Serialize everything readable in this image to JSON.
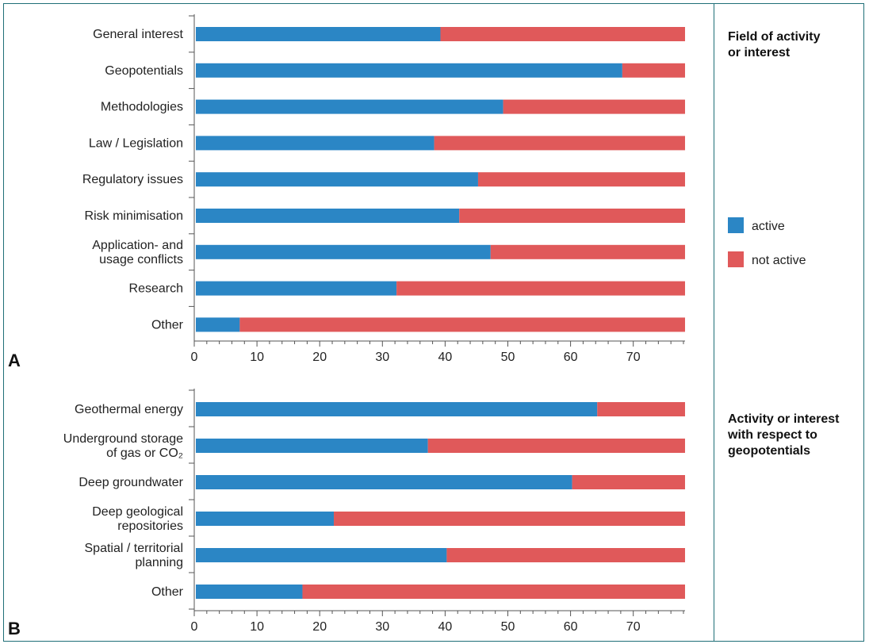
{
  "colors": {
    "active": "#2b86c5",
    "not_active": "#e0595a",
    "frame": "#1f6f78"
  },
  "legend": {
    "active_label": "active",
    "not_active_label": "not active"
  },
  "panels": {
    "A": {
      "letter": "A",
      "side_title_lines": [
        "Field of activity",
        "or interest"
      ]
    },
    "B": {
      "letter": "B",
      "side_title_lines": [
        "Activity or interest",
        "with respect to",
        "geopotentials"
      ]
    }
  },
  "chart_data": [
    {
      "type": "bar",
      "orientation": "horizontal",
      "stacked": true,
      "categories": [
        "General interest",
        "Geopotentials",
        "Methodologies",
        "Law / Legislation",
        "Regulatory issues",
        "Risk minimisation",
        "Application- and usage conflicts",
        "Research",
        "Other"
      ],
      "series": [
        {
          "name": "active",
          "values": [
            39,
            68,
            49,
            38,
            45,
            42,
            47,
            32,
            7
          ]
        },
        {
          "name": "not active",
          "values": [
            39,
            10,
            29,
            40,
            33,
            36,
            31,
            46,
            71
          ]
        }
      ],
      "xticks": [
        0,
        10,
        20,
        30,
        40,
        50,
        60,
        70
      ],
      "xlim": [
        0,
        78
      ],
      "legend": "right"
    },
    {
      "type": "bar",
      "orientation": "horizontal",
      "stacked": true,
      "categories": [
        "Geothermal energy",
        "Underground storage of gas or CO2",
        "Deep groundwater",
        "Deep geological repositories",
        "Spatial / territorial planning",
        "Other"
      ],
      "series": [
        {
          "name": "active",
          "values": [
            64,
            37,
            60,
            22,
            40,
            17
          ]
        },
        {
          "name": "not active",
          "values": [
            14,
            41,
            18,
            56,
            38,
            61
          ]
        }
      ],
      "xticks": [
        0,
        10,
        20,
        30,
        40,
        50,
        60,
        70
      ],
      "xlim": [
        0,
        78
      ]
    }
  ]
}
